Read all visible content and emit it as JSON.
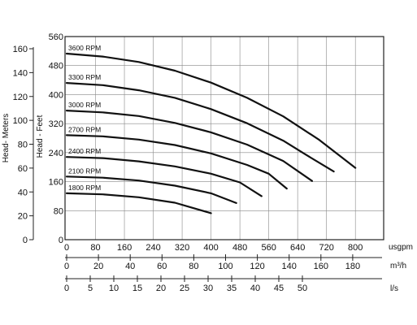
{
  "chart_data": {
    "type": "line",
    "title": "",
    "grid": true,
    "axes": {
      "head_meters": {
        "label": "Head- Meters",
        "ticks": [
          0,
          20,
          40,
          60,
          80,
          100,
          120,
          140,
          160
        ]
      },
      "head_feet": {
        "label": "Head - Feet",
        "ticks": [
          0,
          80,
          160,
          240,
          320,
          400,
          480,
          560
        ],
        "ylim": [
          0,
          560
        ]
      },
      "usgpm": {
        "label": "usgpm",
        "ticks": [
          0,
          80,
          160,
          240,
          320,
          400,
          480,
          560,
          640,
          720,
          800
        ],
        "xlim": [
          0,
          880
        ]
      },
      "m3h": {
        "label": "m³/h",
        "ticks": [
          0,
          20,
          40,
          60,
          80,
          100,
          120,
          140,
          160,
          180
        ]
      },
      "ls": {
        "label": "l/s",
        "ticks": [
          0,
          5,
          10,
          15,
          20,
          25,
          30,
          35,
          40,
          45,
          50
        ]
      }
    },
    "series": [
      {
        "name": "3600 RPM",
        "x": [
          0,
          100,
          200,
          300,
          400,
          500,
          600,
          700,
          800
        ],
        "y": [
          513,
          505,
          490,
          466,
          433,
          391,
          340,
          275,
          198
        ]
      },
      {
        "name": "3300 RPM",
        "x": [
          0,
          100,
          200,
          300,
          400,
          500,
          600,
          660,
          740
        ],
        "y": [
          432,
          426,
          412,
          391,
          360,
          321,
          273,
          236,
          188
        ]
      },
      {
        "name": "3000 RPM",
        "x": [
          0,
          100,
          200,
          300,
          400,
          500,
          600,
          680
        ],
        "y": [
          356,
          351,
          341,
          322,
          296,
          262,
          217,
          162
        ]
      },
      {
        "name": "2700 RPM",
        "x": [
          0,
          100,
          200,
          300,
          400,
          500,
          560,
          610
        ],
        "y": [
          288,
          285,
          276,
          261,
          238,
          206,
          182,
          141
        ]
      },
      {
        "name": "2400 RPM",
        "x": [
          0,
          100,
          200,
          300,
          400,
          480,
          540
        ],
        "y": [
          228,
          225,
          216,
          202,
          182,
          158,
          120
        ]
      },
      {
        "name": "2100 RPM",
        "x": [
          0,
          100,
          200,
          300,
          400,
          470
        ],
        "y": [
          174,
          171,
          163,
          149,
          128,
          101
        ]
      },
      {
        "name": "1800 RPM",
        "x": [
          0,
          100,
          200,
          300,
          400
        ],
        "y": [
          128,
          125,
          117,
          102,
          73
        ]
      }
    ]
  }
}
